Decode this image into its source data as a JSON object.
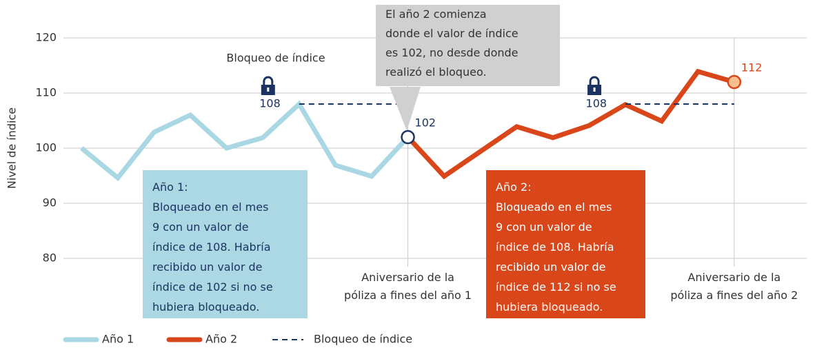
{
  "chart_data": {
    "type": "line",
    "y_label": "Nivel de índice",
    "xlim": [
      -0.5,
      20
    ],
    "ylim": [
      80,
      120
    ],
    "yticks": [
      80,
      90,
      100,
      110,
      120
    ],
    "xticks": [
      {
        "value": 9,
        "label": "Aniversario de la\npóliza a fines del año 1"
      },
      {
        "value": 18,
        "label": "Aniversario de la\npóliza a fines del año 2"
      }
    ],
    "grid": true,
    "series": [
      {
        "name": "Año 1",
        "color": "#a9d7e3",
        "dash": false,
        "x": [
          0,
          1,
          2,
          3,
          4,
          5,
          6,
          7,
          8,
          9
        ],
        "values": [
          100,
          94.6,
          102.9,
          106,
          100,
          101.9,
          108,
          96.9,
          94.9,
          102
        ]
      },
      {
        "name": "Año 2",
        "color": "#d9461a",
        "dash": false,
        "x": [
          9,
          10,
          11,
          12,
          13,
          14,
          15,
          16,
          17,
          18
        ],
        "values": [
          102,
          94.9,
          99.4,
          103.9,
          101.9,
          104.1,
          107.9,
          104.9,
          113.9,
          112
        ]
      },
      {
        "name": "Bloqueo de índice",
        "color": "#1b3361",
        "dash": true,
        "x": [
          6,
          9,
          12,
          15,
          18
        ],
        "values": [
          108,
          108,
          null,
          108,
          108
        ]
      }
    ],
    "markers": [
      {
        "x": 9,
        "y": 102,
        "color": "#1b3361",
        "fill": "#ffffff"
      },
      {
        "x": 18,
        "y": 112,
        "color": "#d9461a",
        "fill": "#f9c08f"
      }
    ],
    "lock_labels": [
      {
        "x": 6,
        "y": 108
      },
      {
        "x": 15,
        "y": 108
      }
    ],
    "lock_title": "Bloqueo de índice",
    "callout": "El año 2 comienza\ndonde el valor de índice\nes 102, no desde donde\nrealizó el bloqueo.",
    "boxes": [
      {
        "text": "Año 1:\nBloqueado en el mes\n9 con un valor de\níndice de 108. Habría\nrecibido un valor de\níndice de 102 si no se\nhubiera bloqueado.",
        "color": "#acd8e3",
        "text_color": "#1b3361"
      },
      {
        "text": "Año 2:\nBloqueado en el mes\n9 con un valor de\níndice de 108. Habría\nrecibido un valor de\níndice de 112 si no se\nhubiera bloqueado.",
        "color": "#d9461a",
        "text_color": "#ffffff"
      }
    ]
  }
}
